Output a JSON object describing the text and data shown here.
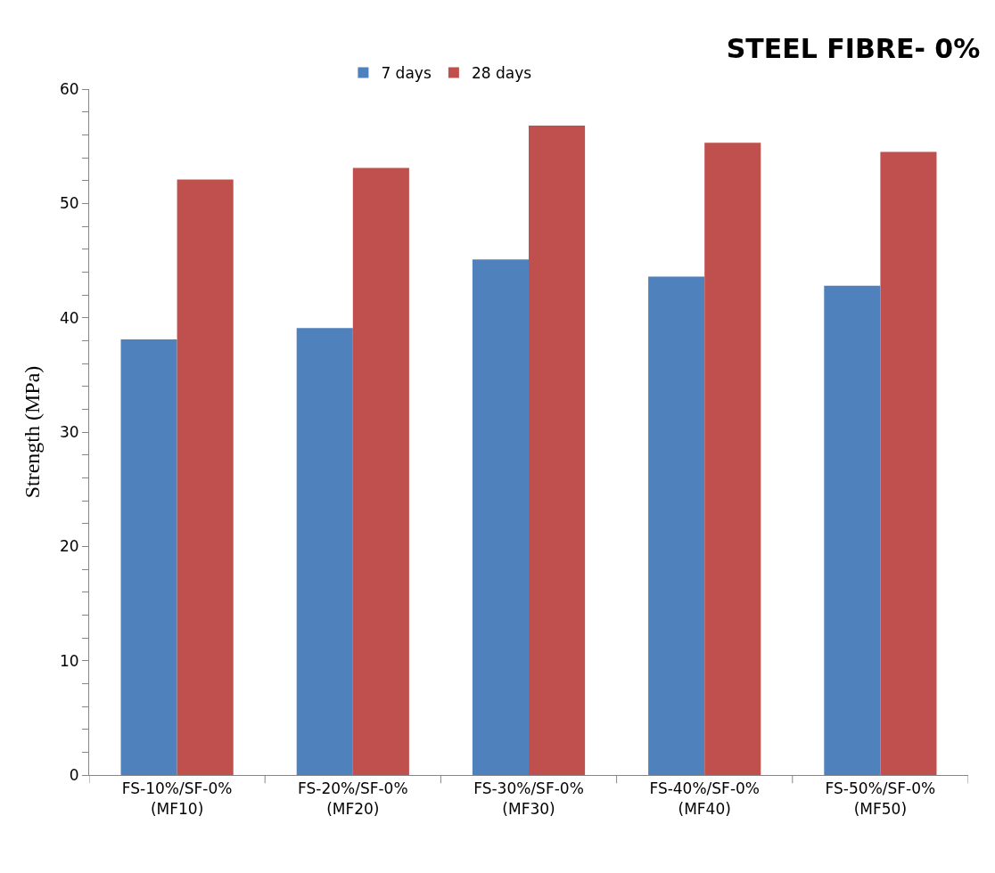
{
  "chart_data": {
    "type": "bar",
    "title": "STEEL FIBRE- 0%",
    "ylabel": "Strength (MPa)",
    "categories": [
      "FS-10%/SF-0%\n(MF10)",
      "FS-20%/SF-0%\n(MF20)",
      "FS-30%/SF-0%\n(MF30)",
      "FS-40%/SF-0%\n(MF40)",
      "FS-50%/SF-0%\n(MF50)"
    ],
    "series": [
      {
        "name": "7 days",
        "color": "#4f81bd",
        "values": [
          38.1,
          39.1,
          45.1,
          43.6,
          42.8
        ]
      },
      {
        "name": "28 days",
        "color": "#c0504d",
        "values": [
          52.1,
          53.1,
          56.8,
          55.3,
          54.5
        ]
      }
    ],
    "ylim": [
      0,
      60
    ],
    "yticks": [
      0,
      {
        "value": 2,
        "label": null
      },
      {
        "value": 4,
        "label": null
      },
      {
        "value": 6,
        "label": null
      },
      {
        "value": 8,
        "label": null
      },
      10,
      {
        "value": 12,
        "label": null
      },
      {
        "value": 14,
        "label": null
      },
      {
        "value": 16,
        "label": null
      },
      {
        "value": 18,
        "label": null
      },
      20,
      {
        "value": 22,
        "label": null
      },
      {
        "value": 24,
        "label": null
      },
      {
        "value": 26,
        "label": null
      },
      {
        "value": 28,
        "label": null
      },
      30,
      {
        "value": 32,
        "label": null
      },
      {
        "value": 34,
        "label": null
      },
      {
        "value": 36,
        "label": null
      },
      {
        "value": 38,
        "label": null
      },
      40,
      {
        "value": 42,
        "label": null
      },
      {
        "value": 44,
        "label": null
      },
      {
        "value": 46,
        "label": null
      },
      {
        "value": 48,
        "label": null
      },
      50,
      {
        "value": 52,
        "label": null
      },
      {
        "value": 54,
        "label": null
      },
      {
        "value": 56,
        "label": null
      },
      {
        "value": 58,
        "label": null
      },
      60
    ],
    "legend": "top"
  }
}
